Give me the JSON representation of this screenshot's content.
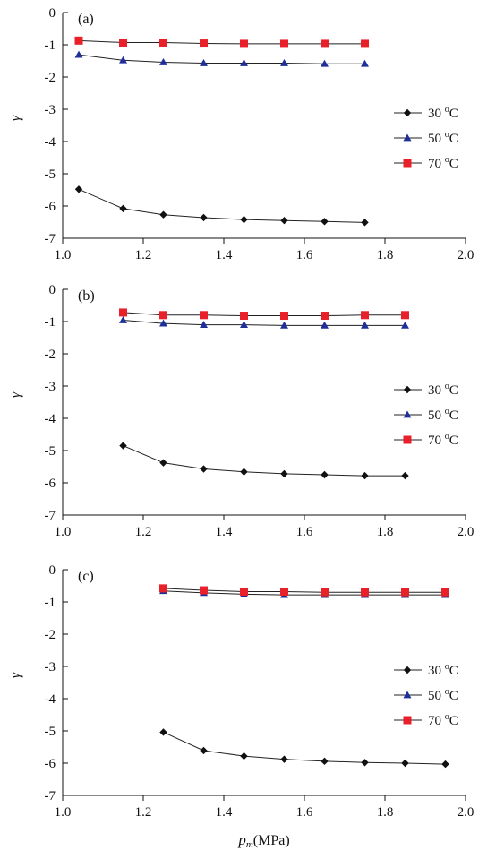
{
  "chart_data": [
    {
      "type": "line",
      "panel_label": "(a)",
      "ylabel": "γ",
      "xlabel": "",
      "xlim": [
        1.0,
        2.0
      ],
      "ylim": [
        -7,
        0
      ],
      "xticks": [
        "1.0",
        "1.2",
        "1.4",
        "1.6",
        "1.8",
        "2.0"
      ],
      "yticks": [
        "0",
        "-1",
        "-2",
        "-3",
        "-4",
        "-5",
        "-6",
        "-7"
      ],
      "legend_position": "right",
      "series": [
        {
          "name": "30 °C",
          "color": "#111111",
          "marker": "diamond",
          "x": [
            1.04,
            1.15,
            1.25,
            1.35,
            1.45,
            1.55,
            1.65,
            1.75
          ],
          "y": [
            -5.48,
            -6.08,
            -6.27,
            -6.36,
            -6.42,
            -6.45,
            -6.48,
            -6.51
          ]
        },
        {
          "name": "50 °C",
          "color": "#1f2f99",
          "marker": "triangle",
          "x": [
            1.04,
            1.15,
            1.25,
            1.35,
            1.45,
            1.55,
            1.65,
            1.75
          ],
          "y": [
            -1.31,
            -1.48,
            -1.54,
            -1.57,
            -1.57,
            -1.57,
            -1.59,
            -1.59
          ]
        },
        {
          "name": "70 °C",
          "color": "#e8202a",
          "marker": "square",
          "x": [
            1.04,
            1.15,
            1.25,
            1.35,
            1.45,
            1.55,
            1.65,
            1.75
          ],
          "y": [
            -0.87,
            -0.93,
            -0.93,
            -0.96,
            -0.97,
            -0.97,
            -0.97,
            -0.97
          ]
        }
      ]
    },
    {
      "type": "line",
      "panel_label": "(b)",
      "ylabel": "γ",
      "xlabel": "",
      "xlim": [
        1.0,
        2.0
      ],
      "ylim": [
        -7,
        0
      ],
      "xticks": [
        "1.0",
        "1.2",
        "1.4",
        "1.6",
        "1.8",
        "2.0"
      ],
      "yticks": [
        "0",
        "-1",
        "-2",
        "-3",
        "-4",
        "-5",
        "-6",
        "-7"
      ],
      "legend_position": "right",
      "series": [
        {
          "name": "30 °C",
          "color": "#111111",
          "marker": "diamond",
          "x": [
            1.15,
            1.25,
            1.35,
            1.45,
            1.55,
            1.65,
            1.75,
            1.85
          ],
          "y": [
            -4.85,
            -5.38,
            -5.57,
            -5.66,
            -5.72,
            -5.75,
            -5.78,
            -5.78
          ]
        },
        {
          "name": "50 °C",
          "color": "#1f2f99",
          "marker": "triangle",
          "x": [
            1.15,
            1.25,
            1.35,
            1.45,
            1.55,
            1.65,
            1.75,
            1.85
          ],
          "y": [
            -0.96,
            -1.06,
            -1.1,
            -1.1,
            -1.12,
            -1.12,
            -1.12,
            -1.12
          ]
        },
        {
          "name": "70 °C",
          "color": "#e8202a",
          "marker": "square",
          "x": [
            1.15,
            1.25,
            1.35,
            1.45,
            1.55,
            1.65,
            1.75,
            1.85
          ],
          "y": [
            -0.72,
            -0.8,
            -0.8,
            -0.82,
            -0.82,
            -0.82,
            -0.8,
            -0.8
          ]
        }
      ]
    },
    {
      "type": "line",
      "panel_label": "(c)",
      "ylabel": "γ",
      "xlabel": "pm(MPa)",
      "xlim": [
        1.0,
        2.0
      ],
      "ylim": [
        -7,
        0
      ],
      "xticks": [
        "1.0",
        "1.2",
        "1.4",
        "1.6",
        "1.8",
        "2.0"
      ],
      "yticks": [
        "0",
        "-1",
        "-2",
        "-3",
        "-4",
        "-5",
        "-6",
        "-7"
      ],
      "legend_position": "right",
      "series": [
        {
          "name": "30 °C",
          "color": "#111111",
          "marker": "diamond",
          "x": [
            1.25,
            1.35,
            1.45,
            1.55,
            1.65,
            1.75,
            1.85,
            1.95
          ],
          "y": [
            -5.04,
            -5.61,
            -5.78,
            -5.88,
            -5.94,
            -5.98,
            -6.0,
            -6.03
          ]
        },
        {
          "name": "50 °C",
          "color": "#1f2f99",
          "marker": "triangle",
          "x": [
            1.25,
            1.35,
            1.45,
            1.55,
            1.65,
            1.75,
            1.85,
            1.95
          ],
          "y": [
            -0.66,
            -0.72,
            -0.76,
            -0.78,
            -0.78,
            -0.78,
            -0.78,
            -0.78
          ]
        },
        {
          "name": "70 °C",
          "color": "#e8202a",
          "marker": "square",
          "x": [
            1.25,
            1.35,
            1.45,
            1.55,
            1.65,
            1.75,
            1.85,
            1.95
          ],
          "y": [
            -0.58,
            -0.64,
            -0.68,
            -0.68,
            -0.7,
            -0.7,
            -0.7,
            -0.7
          ]
        }
      ]
    }
  ]
}
